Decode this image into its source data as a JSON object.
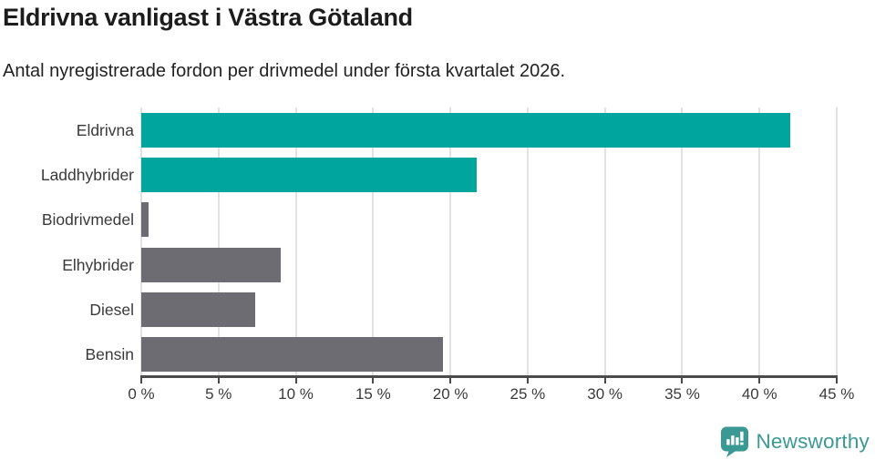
{
  "header": {
    "title": "Eldrivna vanligast i Västra Götaland",
    "subtitle": "Antal nyregistrerade fordon per drivmedel under första kvartalet 2026."
  },
  "chart_data": {
    "type": "bar",
    "orientation": "horizontal",
    "title": "Eldrivna vanligast i Västra Götaland",
    "subtitle": "Antal nyregistrerade fordon per drivmedel under första kvartalet 2026.",
    "categories": [
      "Eldrivna",
      "Laddhybrider",
      "Biodrivmedel",
      "Elhybrider",
      "Diesel",
      "Bensin"
    ],
    "values": [
      42.0,
      21.7,
      0.5,
      9.0,
      7.4,
      19.5
    ],
    "unit": "%",
    "xlim": [
      0,
      45
    ],
    "x_tick_step": 5,
    "x_tick_labels": [
      "0 %",
      "5 %",
      "10 %",
      "15 %",
      "20 %",
      "25 %",
      "30 %",
      "35 %",
      "40 %",
      "45 %"
    ],
    "grid": "vertical",
    "legend": "none",
    "bar_colors": [
      "#00a69d",
      "#00a69d",
      "#6c6c72",
      "#6c6c72",
      "#6c6c72",
      "#6c6c72"
    ]
  },
  "colors": {
    "accent_teal": "#00a69d",
    "bar_gray": "#6c6c72",
    "gridline": "#e2e2e2",
    "axis": "#4b4b4b",
    "text_dark": "#1c1c1c",
    "text_label": "#3a3a3a",
    "brand_teal": "#3a9a93"
  },
  "footer": {
    "brand": "Newsworthy",
    "logo_icon": "bar-chart-speech-bubble-icon"
  }
}
